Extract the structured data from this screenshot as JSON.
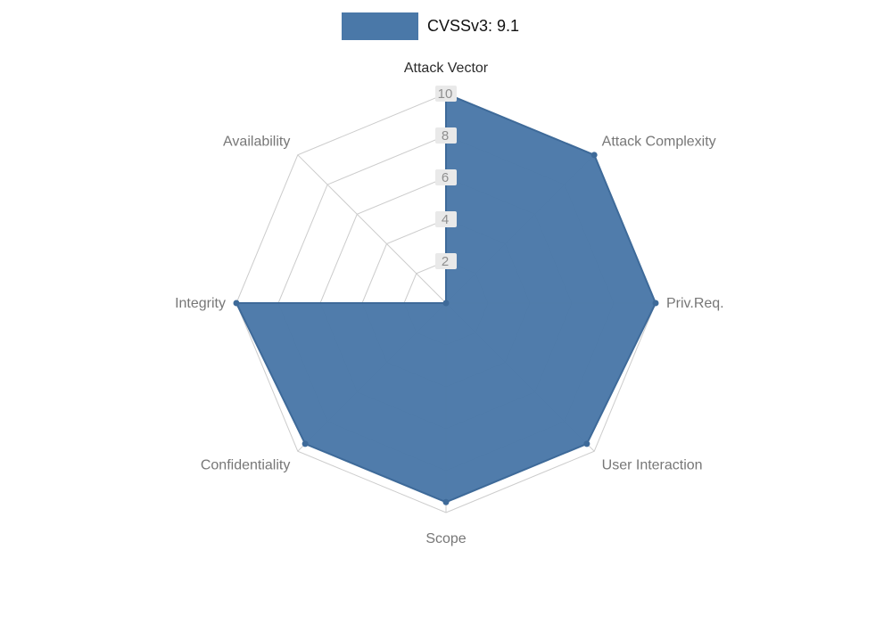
{
  "legend": {
    "label": "CVSSv3: 9.1"
  },
  "chart_data": {
    "type": "radar",
    "title": "CVSSv3: 9.1",
    "axes": [
      "Attack Vector",
      "Attack Complexity",
      "Priv.Req.",
      "User Interaction",
      "Scope",
      "Confidentiality",
      "Integrity",
      "Availability"
    ],
    "series": [
      {
        "name": "CVSSv3: 9.1",
        "values": [
          10,
          10,
          10,
          9.5,
          9.5,
          9.5,
          10,
          0
        ]
      }
    ],
    "max": 10,
    "ticks": [
      2,
      4,
      6,
      8,
      10
    ],
    "grid": true,
    "legend_position": "top-center",
    "colors": {
      "fill": "#4a78a8",
      "edge": "#3e6a99",
      "grid": "#cccccc",
      "tick_text": "#8f8f8f",
      "tick_bg": "#e9e9e9",
      "axis_label": "#777777",
      "axis_label_primary": "#2b2b2b"
    }
  }
}
